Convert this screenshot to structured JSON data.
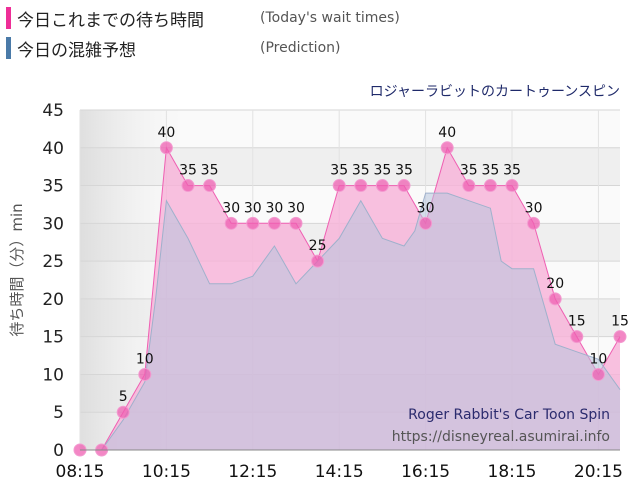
{
  "legend": {
    "today": {
      "label": "今日これまでの待ち時間",
      "sublabel": "(Today's wait times)",
      "color": "#ee2e97"
    },
    "prediction": {
      "label": "今日の混雑予想",
      "sublabel": "(Prediction)",
      "color": "#4a7aa8"
    }
  },
  "watermark": {
    "title": "Roger Rabbit's Car Toon Spin",
    "url": "https://disneyreal.asumirai.info"
  },
  "chart_data": {
    "type": "area",
    "title": "ロジャーラビットのカートゥーンスピン",
    "ylabel": "待ち時間（分）min",
    "ylim": [
      0,
      45
    ],
    "yticks": [
      0,
      5,
      10,
      15,
      20,
      25,
      30,
      35,
      40,
      45
    ],
    "xlim": [
      "08:15",
      "20:45"
    ],
    "xticks": [
      "08:15",
      "10:15",
      "12:15",
      "14:15",
      "16:15",
      "18:15",
      "20:15"
    ],
    "grid": true,
    "series": [
      {
        "name": "今日これまでの待ち時間",
        "x": [
          "08:15",
          "08:45",
          "09:15",
          "09:45",
          "10:15",
          "10:45",
          "11:15",
          "11:45",
          "12:15",
          "12:45",
          "13:15",
          "13:45",
          "14:15",
          "14:45",
          "15:15",
          "15:45",
          "16:15",
          "16:45",
          "17:15",
          "17:45",
          "18:15",
          "18:45",
          "19:15",
          "19:45",
          "20:15",
          "20:45"
        ],
        "values": [
          0,
          0,
          5,
          10,
          40,
          35,
          35,
          30,
          30,
          30,
          30,
          25,
          35,
          35,
          35,
          35,
          30,
          40,
          35,
          35,
          35,
          30,
          20,
          15,
          10,
          15
        ],
        "labels": [
          "",
          "",
          "5",
          "10",
          "40",
          "35",
          "35",
          "30",
          "30",
          "30",
          "30",
          "25",
          "35",
          "35",
          "35",
          "35",
          "30",
          "40",
          "35",
          "35",
          "35",
          "30",
          "20",
          "15",
          "10",
          "15"
        ],
        "fill": "#f7b2d8",
        "line": "#ef5fb2",
        "marker": "#ef5fb2"
      },
      {
        "name": "今日の混雑予想",
        "x": [
          "08:15",
          "08:45",
          "09:15",
          "09:45",
          "10:00",
          "10:15",
          "10:45",
          "11:15",
          "11:45",
          "12:15",
          "12:45",
          "13:15",
          "13:45",
          "14:15",
          "14:45",
          "15:15",
          "15:45",
          "16:00",
          "16:15",
          "16:45",
          "17:15",
          "17:45",
          "18:00",
          "18:15",
          "18:45",
          "19:15",
          "19:45",
          "20:15",
          "20:45"
        ],
        "values": [
          0,
          0,
          4,
          9,
          20,
          33,
          28,
          22,
          22,
          23,
          27,
          22,
          25,
          28,
          33,
          28,
          27,
          29,
          34,
          34,
          33,
          32,
          25,
          24,
          24,
          14,
          13,
          12,
          8
        ],
        "fill": "#b6c5dc",
        "line": "#9fb1cc"
      }
    ]
  }
}
